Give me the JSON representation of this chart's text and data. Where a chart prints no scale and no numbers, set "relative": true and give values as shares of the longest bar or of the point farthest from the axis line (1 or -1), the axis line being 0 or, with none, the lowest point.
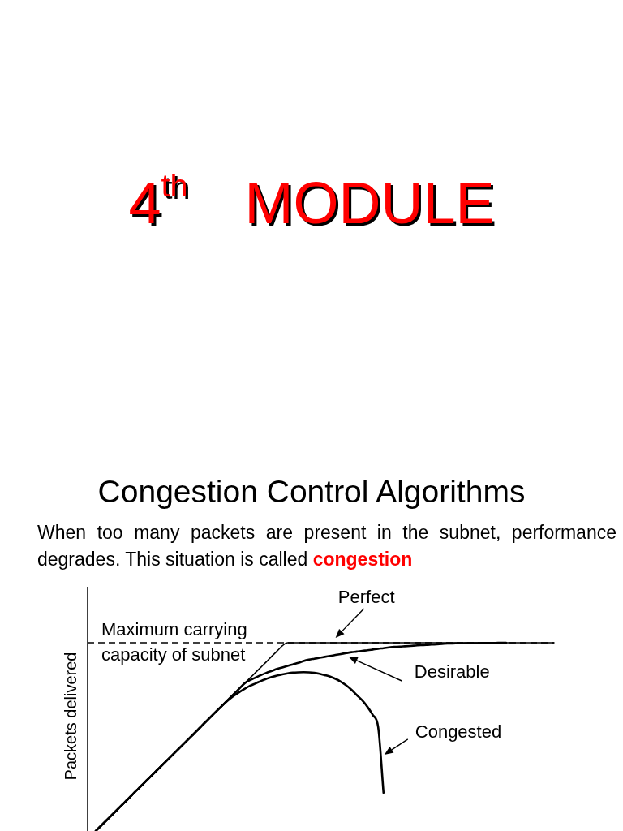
{
  "chart_data": {
    "type": "line",
    "title": "4$^{th}$ MODULE",
    "subtitle": "Congestion Control Algorithms",
    "annotations": [
      "When too many packets are present in the subnet, performance degrades. This situation is called",
      "congestion"
    ],
    "ylabel": "Packets delivered",
    "relative": true,
    "categories": [
      null,
      null,
      null,
      null,
      null,
      null,
      null,
      null,
      null,
      null,
      null,
      null,
      null,
      null,
      null,
      null,
      null,
      null,
      null,
      null,
      null,
      null,
      null,
      null,
      null,
      null,
      null,
      null,
      null,
      null,
      null,
      null,
      null,
      null,
      null,
      null,
      null,
      null,
      null,
      null,
      null,
      null,
      null,
      null,
      null,
      null,
      null,
      null,
      null,
      null,
      null,
      null,
      null,
      null,
      null,
      null,
      null,
      null,
      null,
      null,
      null,
      null,
      null,
      null,
      null,
      null,
      null,
      null,
      null,
      null,
      null,
      null,
      null,
      null,
      null,
      null,
      null,
      null,
      null,
      null,
      null,
      null,
      null,
      null,
      null,
      null,
      null
    ],
    "series": [
      {
        "name": "Perfect",
        "color": "#000000",
        "values": [
          0,
          0.028,
          0.056,
          0.084,
          0.112,
          0.14,
          0.168,
          0.197,
          0.225,
          0.253,
          0.281,
          0.309,
          0.337,
          0.365,
          0.393,
          0.421,
          0.449,
          0.477,
          0.505,
          0.533,
          0.562,
          0.59,
          0.618,
          0.646,
          0.674,
          0.702,
          0.73,
          0.758,
          0.786,
          0.814,
          0.842,
          0.87,
          0.898,
          0.927,
          0.955,
          0.983,
          1,
          1,
          1,
          1,
          1,
          1,
          1,
          1,
          1,
          1,
          1,
          1,
          1,
          1,
          1,
          1,
          1,
          1,
          1,
          1,
          1,
          1,
          1,
          1,
          1,
          1,
          1,
          1,
          1,
          1,
          1,
          1,
          1,
          1,
          1,
          1,
          1,
          1,
          1,
          1,
          1,
          1,
          1,
          1,
          1,
          1,
          1,
          1,
          1,
          1,
          1
        ]
      },
      {
        "name": "Desirable",
        "color": "#000000",
        "values": [
          0,
          0.028,
          0.056,
          0.084,
          0.112,
          0.14,
          0.168,
          0.197,
          0.225,
          0.253,
          0.281,
          0.309,
          0.337,
          0.365,
          0.393,
          0.421,
          0.449,
          0.477,
          0.505,
          0.533,
          0.562,
          0.59,
          0.618,
          0.646,
          0.674,
          0.702,
          0.73,
          0.758,
          0.786,
          0.802,
          0.815,
          0.828,
          0.84,
          0.85,
          0.861,
          0.869,
          0.877,
          0.885,
          0.893,
          0.903,
          0.91,
          0.915,
          0.92,
          0.925,
          0.93,
          0.935,
          0.94,
          0.945,
          0.95,
          0.953,
          0.957,
          0.96,
          0.964,
          0.968,
          0.971,
          0.975,
          0.978,
          0.979,
          0.981,
          0.983,
          0.985,
          0.987,
          0.988,
          0.99,
          0.992,
          0.994,
          0.996,
          0.996,
          0.997,
          0.997,
          0.998,
          0.998,
          0.998,
          0.999,
          0.999,
          0.999,
          1,
          1,
          null,
          null,
          null,
          null,
          null,
          null,
          null,
          null,
          null
        ]
      },
      {
        "name": "Congested",
        "color": "#000000",
        "values": [
          0,
          0.028,
          0.056,
          0.084,
          0.112,
          0.14,
          0.168,
          0.197,
          0.225,
          0.253,
          0.281,
          0.309,
          0.337,
          0.365,
          0.393,
          0.421,
          0.449,
          0.477,
          0.505,
          0.533,
          0.562,
          0.59,
          0.618,
          0.646,
          0.673,
          0.698,
          0.72,
          0.739,
          0.756,
          0.772,
          0.784,
          0.797,
          0.808,
          0.818,
          0.825,
          0.832,
          0.837,
          0.841,
          0.843,
          0.844,
          0.843,
          0.84,
          0.835,
          0.828,
          0.82,
          0.808,
          0.793,
          0.774,
          0.75,
          0.722,
          0.694,
          0.659,
          0.616,
          0.552,
          0.203,
          null,
          null,
          null,
          null,
          null,
          null,
          null,
          null,
          null,
          null,
          null,
          null,
          null,
          null,
          null,
          null,
          null,
          null,
          null,
          null,
          null,
          null,
          null,
          null,
          null,
          null,
          null,
          null,
          null,
          null,
          null,
          null
        ]
      }
    ],
    "ref_lines": [
      {
        "axis": "y",
        "value": 1,
        "label": "Maximum carrying capacity of subnet",
        "line_style": "dashed"
      }
    ]
  }
}
